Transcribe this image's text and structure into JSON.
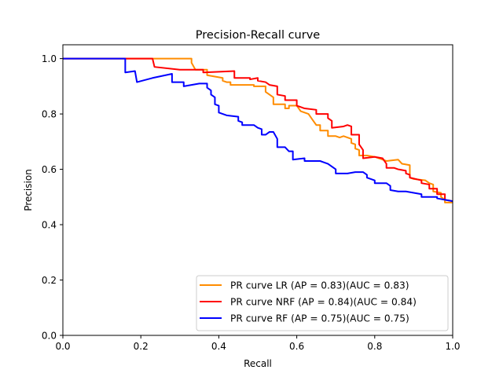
{
  "chart_data": {
    "type": "line",
    "title": "Precision-Recall curve",
    "xlabel": "Recall",
    "ylabel": "Precision",
    "xlim": [
      0,
      1
    ],
    "ylim": [
      0,
      1.05
    ],
    "xticks": [
      {
        "value": 0.0,
        "label": "0.0"
      },
      {
        "value": 0.2,
        "label": "0.2"
      },
      {
        "value": 0.4,
        "label": "0.4"
      },
      {
        "value": 0.6,
        "label": "0.6"
      },
      {
        "value": 0.8,
        "label": "0.8"
      },
      {
        "value": 1.0,
        "label": "1.0"
      }
    ],
    "yticks": [
      {
        "value": 0.0,
        "label": "0.0"
      },
      {
        "value": 0.2,
        "label": "0.2"
      },
      {
        "value": 0.4,
        "label": "0.4"
      },
      {
        "value": 0.6,
        "label": "0.6"
      },
      {
        "value": 0.8,
        "label": "0.8"
      },
      {
        "value": 1.0,
        "label": "1.0"
      }
    ],
    "grid": false,
    "legend_position": "lower-right",
    "series": [
      {
        "name": "PR curve LR (AP = 0.83)(AUC = 0.83)",
        "color": "#ff8c00",
        "points": [
          [
            0.0,
            1.0
          ],
          [
            0.33,
            1.0
          ],
          [
            0.33,
            0.985
          ],
          [
            0.34,
            0.96
          ],
          [
            0.37,
            0.96
          ],
          [
            0.37,
            0.94
          ],
          [
            0.41,
            0.93
          ],
          [
            0.41,
            0.92
          ],
          [
            0.42,
            0.915
          ],
          [
            0.43,
            0.915
          ],
          [
            0.43,
            0.905
          ],
          [
            0.49,
            0.905
          ],
          [
            0.49,
            0.9
          ],
          [
            0.52,
            0.9
          ],
          [
            0.52,
            0.88
          ],
          [
            0.53,
            0.87
          ],
          [
            0.54,
            0.86
          ],
          [
            0.54,
            0.835
          ],
          [
            0.57,
            0.835
          ],
          [
            0.57,
            0.82
          ],
          [
            0.58,
            0.82
          ],
          [
            0.58,
            0.83
          ],
          [
            0.6,
            0.83
          ],
          [
            0.61,
            0.81
          ],
          [
            0.63,
            0.8
          ],
          [
            0.64,
            0.78
          ],
          [
            0.65,
            0.76
          ],
          [
            0.66,
            0.76
          ],
          [
            0.66,
            0.74
          ],
          [
            0.68,
            0.74
          ],
          [
            0.68,
            0.72
          ],
          [
            0.7,
            0.72
          ],
          [
            0.71,
            0.715
          ],
          [
            0.72,
            0.72
          ],
          [
            0.74,
            0.71
          ],
          [
            0.74,
            0.695
          ],
          [
            0.75,
            0.69
          ],
          [
            0.75,
            0.675
          ],
          [
            0.76,
            0.67
          ],
          [
            0.76,
            0.65
          ],
          [
            0.78,
            0.65
          ],
          [
            0.8,
            0.645
          ],
          [
            0.81,
            0.64
          ],
          [
            0.82,
            0.635
          ],
          [
            0.83,
            0.63
          ],
          [
            0.86,
            0.635
          ],
          [
            0.87,
            0.62
          ],
          [
            0.89,
            0.615
          ],
          [
            0.89,
            0.57
          ],
          [
            0.9,
            0.565
          ],
          [
            0.93,
            0.56
          ],
          [
            0.94,
            0.55
          ],
          [
            0.95,
            0.545
          ],
          [
            0.95,
            0.52
          ],
          [
            0.97,
            0.515
          ],
          [
            0.97,
            0.5
          ],
          [
            0.98,
            0.49
          ],
          [
            0.98,
            0.48
          ],
          [
            1.0,
            0.48
          ]
        ]
      },
      {
        "name": "PR curve NRF (AP = 0.84)(AUC = 0.84)",
        "color": "#ff0000",
        "points": [
          [
            0.0,
            1.0
          ],
          [
            0.23,
            1.0
          ],
          [
            0.235,
            0.97
          ],
          [
            0.3,
            0.96
          ],
          [
            0.36,
            0.96
          ],
          [
            0.36,
            0.95
          ],
          [
            0.44,
            0.955
          ],
          [
            0.44,
            0.93
          ],
          [
            0.48,
            0.93
          ],
          [
            0.48,
            0.925
          ],
          [
            0.5,
            0.93
          ],
          [
            0.5,
            0.92
          ],
          [
            0.52,
            0.915
          ],
          [
            0.53,
            0.905
          ],
          [
            0.55,
            0.9
          ],
          [
            0.55,
            0.87
          ],
          [
            0.57,
            0.865
          ],
          [
            0.57,
            0.85
          ],
          [
            0.6,
            0.85
          ],
          [
            0.6,
            0.83
          ],
          [
            0.62,
            0.82
          ],
          [
            0.65,
            0.815
          ],
          [
            0.65,
            0.8
          ],
          [
            0.68,
            0.8
          ],
          [
            0.68,
            0.785
          ],
          [
            0.69,
            0.775
          ],
          [
            0.69,
            0.75
          ],
          [
            0.72,
            0.755
          ],
          [
            0.73,
            0.76
          ],
          [
            0.74,
            0.755
          ],
          [
            0.74,
            0.725
          ],
          [
            0.76,
            0.725
          ],
          [
            0.76,
            0.69
          ],
          [
            0.77,
            0.67
          ],
          [
            0.77,
            0.64
          ],
          [
            0.8,
            0.645
          ],
          [
            0.82,
            0.64
          ],
          [
            0.83,
            0.62
          ],
          [
            0.83,
            0.605
          ],
          [
            0.85,
            0.605
          ],
          [
            0.86,
            0.6
          ],
          [
            0.88,
            0.595
          ],
          [
            0.88,
            0.585
          ],
          [
            0.89,
            0.58
          ],
          [
            0.89,
            0.57
          ],
          [
            0.92,
            0.56
          ],
          [
            0.92,
            0.55
          ],
          [
            0.94,
            0.545
          ],
          [
            0.94,
            0.53
          ],
          [
            0.96,
            0.53
          ],
          [
            0.96,
            0.51
          ],
          [
            0.98,
            0.51
          ],
          [
            0.98,
            0.49
          ],
          [
            1.0,
            0.485
          ]
        ]
      },
      {
        "name": "PR curve RF (AP = 0.75)(AUC = 0.75)",
        "color": "#0000ff",
        "points": [
          [
            0.0,
            1.0
          ],
          [
            0.16,
            1.0
          ],
          [
            0.16,
            0.95
          ],
          [
            0.185,
            0.955
          ],
          [
            0.19,
            0.915
          ],
          [
            0.23,
            0.93
          ],
          [
            0.28,
            0.945
          ],
          [
            0.28,
            0.915
          ],
          [
            0.31,
            0.915
          ],
          [
            0.31,
            0.9
          ],
          [
            0.35,
            0.91
          ],
          [
            0.37,
            0.91
          ],
          [
            0.37,
            0.895
          ],
          [
            0.38,
            0.885
          ],
          [
            0.38,
            0.87
          ],
          [
            0.39,
            0.86
          ],
          [
            0.39,
            0.835
          ],
          [
            0.4,
            0.83
          ],
          [
            0.4,
            0.805
          ],
          [
            0.42,
            0.795
          ],
          [
            0.45,
            0.79
          ],
          [
            0.45,
            0.775
          ],
          [
            0.46,
            0.77
          ],
          [
            0.46,
            0.76
          ],
          [
            0.49,
            0.76
          ],
          [
            0.5,
            0.75
          ],
          [
            0.51,
            0.745
          ],
          [
            0.51,
            0.725
          ],
          [
            0.52,
            0.725
          ],
          [
            0.53,
            0.735
          ],
          [
            0.54,
            0.735
          ],
          [
            0.55,
            0.71
          ],
          [
            0.55,
            0.68
          ],
          [
            0.57,
            0.68
          ],
          [
            0.58,
            0.665
          ],
          [
            0.59,
            0.665
          ],
          [
            0.59,
            0.635
          ],
          [
            0.62,
            0.64
          ],
          [
            0.62,
            0.63
          ],
          [
            0.66,
            0.63
          ],
          [
            0.67,
            0.625
          ],
          [
            0.68,
            0.62
          ],
          [
            0.69,
            0.61
          ],
          [
            0.7,
            0.6
          ],
          [
            0.7,
            0.585
          ],
          [
            0.73,
            0.585
          ],
          [
            0.75,
            0.59
          ],
          [
            0.77,
            0.59
          ],
          [
            0.78,
            0.58
          ],
          [
            0.78,
            0.57
          ],
          [
            0.8,
            0.56
          ],
          [
            0.8,
            0.55
          ],
          [
            0.83,
            0.55
          ],
          [
            0.84,
            0.54
          ],
          [
            0.84,
            0.525
          ],
          [
            0.86,
            0.52
          ],
          [
            0.88,
            0.52
          ],
          [
            0.92,
            0.51
          ],
          [
            0.92,
            0.5
          ],
          [
            0.96,
            0.5
          ],
          [
            0.96,
            0.495
          ],
          [
            1.0,
            0.485
          ]
        ]
      }
    ]
  }
}
